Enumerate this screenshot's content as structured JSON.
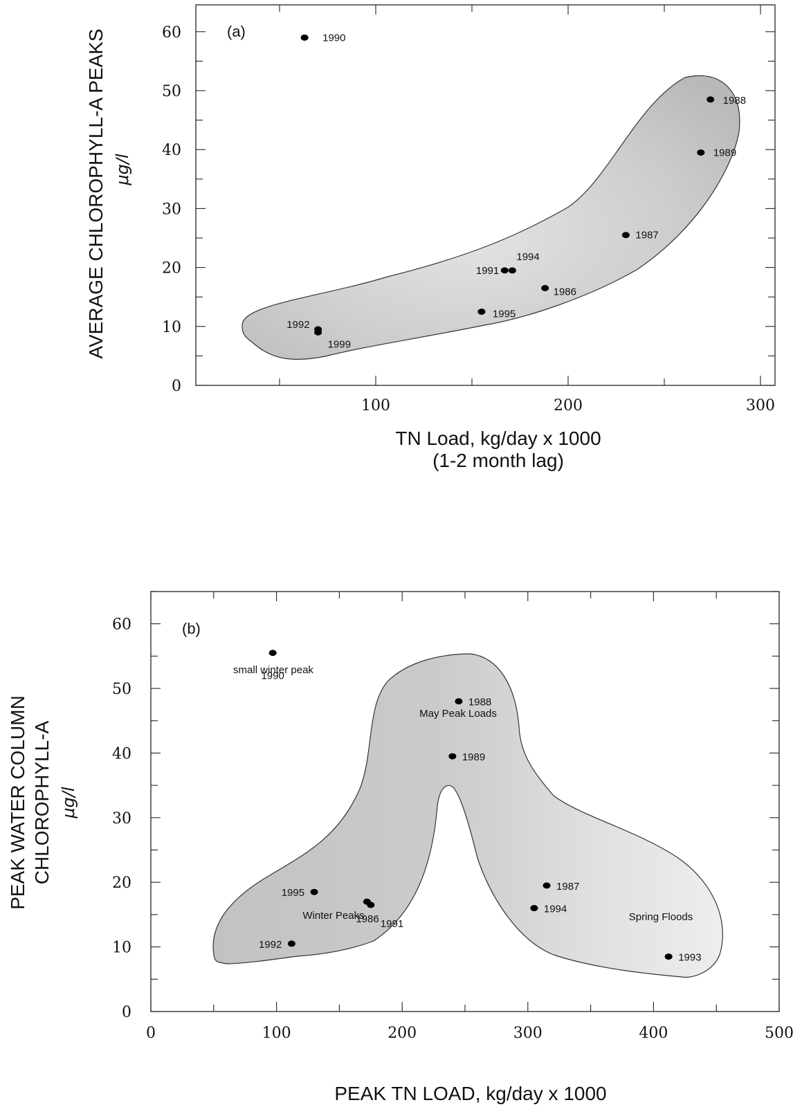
{
  "chart_data": [
    {
      "type": "scatter",
      "panel_label": "(a)",
      "xlabel": "TN Load, kg/day x 1000",
      "xlabel_line2": "(1-2 month lag)",
      "ylabel": "AVERAGE CHLOROPHYLL-A PEAKS",
      "ylabel_unit": "μg/l",
      "xlim": [
        0,
        300
      ],
      "ylim": [
        0,
        65
      ],
      "x_ticks": [
        100,
        200,
        300
      ],
      "y_ticks": [
        0,
        10,
        20,
        30,
        40,
        50,
        60
      ],
      "grid": false,
      "points": [
        {
          "label": "1990",
          "x": 63,
          "y": 59
        },
        {
          "label": "1988",
          "x": 274,
          "y": 48.5
        },
        {
          "label": "1989",
          "x": 269,
          "y": 39.5
        },
        {
          "label": "1987",
          "x": 230,
          "y": 25.5
        },
        {
          "label": "1991",
          "x": 167,
          "y": 19.5
        },
        {
          "label": "1994",
          "x": 171,
          "y": 19.5
        },
        {
          "label": "1986",
          "x": 188,
          "y": 16.5
        },
        {
          "label": "1995",
          "x": 155,
          "y": 12.5
        },
        {
          "label": "1992",
          "x": 70,
          "y": 9.5
        },
        {
          "label": "1999",
          "x": 70,
          "y": 9
        }
      ]
    },
    {
      "type": "scatter",
      "panel_label": "(b)",
      "xlabel": "PEAK TN LOAD, kg/day x 1000",
      "ylabel": "PEAK WATER COLUMN",
      "ylabel_line2": "CHLOROPHYLL-A",
      "ylabel_unit": "μg/l",
      "xlim": [
        0,
        500
      ],
      "ylim": [
        0,
        65
      ],
      "x_ticks": [
        0,
        100,
        200,
        300,
        400,
        500
      ],
      "y_ticks": [
        0,
        10,
        20,
        30,
        40,
        50,
        60
      ],
      "grid": false,
      "annotations": [
        "May Peak Loads",
        "Winter Peaks",
        "Spring Floods",
        "small winter peak"
      ],
      "points": [
        {
          "label": "1990",
          "x": 97,
          "y": 55.5
        },
        {
          "label": "1988",
          "x": 245,
          "y": 48
        },
        {
          "label": "1989",
          "x": 240,
          "y": 39.5
        },
        {
          "label": "1987",
          "x": 315,
          "y": 19.5
        },
        {
          "label": "1994",
          "x": 305,
          "y": 16
        },
        {
          "label": "1993",
          "x": 412,
          "y": 8.5
        },
        {
          "label": "1995",
          "x": 130,
          "y": 18.5
        },
        {
          "label": "1986",
          "x": 172,
          "y": 17
        },
        {
          "label": "1991",
          "x": 175,
          "y": 16.5
        },
        {
          "label": "1992",
          "x": 112,
          "y": 10.5
        }
      ]
    }
  ]
}
